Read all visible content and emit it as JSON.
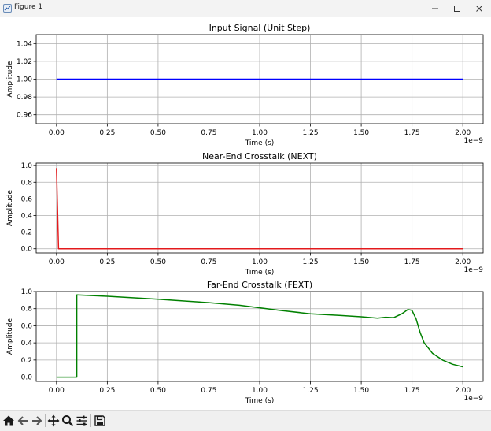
{
  "window": {
    "title": "Figure 1",
    "minimize_icon": "minimize-icon",
    "maximize_icon": "maximize-icon",
    "close_icon": "close-icon"
  },
  "toolbar": {
    "buttons": [
      "home-icon",
      "back-arrow-icon",
      "forward-arrow-icon",
      "pan-move-icon",
      "zoom-magnifier-icon",
      "configure-subplots-icon",
      "save-floppy-icon"
    ]
  },
  "chart_data": [
    {
      "type": "line",
      "title": "Input Signal (Unit Step)",
      "xlabel": "Time (s)",
      "ylabel": "Amplitude",
      "x_offset_text": "1e−9",
      "xlim": [
        -0.1,
        2.1
      ],
      "ylim": [
        0.95,
        1.05
      ],
      "x_ticks": [
        "0.00",
        "0.25",
        "0.50",
        "0.75",
        "1.00",
        "1.25",
        "1.50",
        "1.75",
        "2.00"
      ],
      "y_ticks": [
        "0.96",
        "0.98",
        "1.00",
        "1.02",
        "1.04"
      ],
      "y_tick_values": [
        0.96,
        0.98,
        1.0,
        1.02,
        1.04
      ],
      "grid": true,
      "series": [
        {
          "color": "#0000ff",
          "x": [
            0.0,
            2.0
          ],
          "y": [
            1.0,
            1.0
          ]
        }
      ]
    },
    {
      "type": "line",
      "title": "Near-End Crosstalk (NEXT)",
      "xlabel": "Time (s)",
      "ylabel": "Amplitude",
      "x_offset_text": "1e−9",
      "xlim": [
        -0.1,
        2.1
      ],
      "ylim": [
        -0.05,
        1.03
      ],
      "x_ticks": [
        "0.00",
        "0.25",
        "0.50",
        "0.75",
        "1.00",
        "1.25",
        "1.50",
        "1.75",
        "2.00"
      ],
      "y_ticks": [
        "0.0",
        "0.2",
        "0.4",
        "0.6",
        "0.8",
        "1.0"
      ],
      "y_tick_values": [
        0.0,
        0.2,
        0.4,
        0.6,
        0.8,
        1.0
      ],
      "grid": true,
      "series": [
        {
          "color": "#e31a1c",
          "x": [
            0.0,
            0.0,
            0.01,
            2.0
          ],
          "y": [
            0.97,
            0.97,
            0.0,
            0.0
          ]
        }
      ]
    },
    {
      "type": "line",
      "title": "Far-End Crosstalk (FEXT)",
      "xlabel": "Time (s)",
      "ylabel": "Amplitude",
      "x_offset_text": "1e−9",
      "xlim": [
        -0.1,
        2.1
      ],
      "ylim": [
        -0.05,
        1.0
      ],
      "x_ticks": [
        "0.00",
        "0.25",
        "0.50",
        "0.75",
        "1.00",
        "1.25",
        "1.50",
        "1.75",
        "2.00"
      ],
      "y_ticks": [
        "0.0",
        "0.2",
        "0.4",
        "0.6",
        "0.8",
        "1.0"
      ],
      "y_tick_values": [
        0.0,
        0.2,
        0.4,
        0.6,
        0.8,
        1.0
      ],
      "grid": true,
      "series": [
        {
          "color": "#008000",
          "x": [
            0.0,
            0.1,
            0.1,
            0.25,
            0.5,
            0.75,
            0.9,
            1.0,
            1.1,
            1.25,
            1.4,
            1.5,
            1.58,
            1.62,
            1.66,
            1.7,
            1.73,
            1.75,
            1.77,
            1.79,
            1.81,
            1.85,
            1.9,
            1.95,
            2.0
          ],
          "y": [
            0.0,
            0.0,
            0.96,
            0.945,
            0.91,
            0.87,
            0.84,
            0.81,
            0.78,
            0.74,
            0.72,
            0.705,
            0.69,
            0.7,
            0.695,
            0.74,
            0.79,
            0.78,
            0.68,
            0.52,
            0.4,
            0.28,
            0.2,
            0.15,
            0.12
          ]
        }
      ]
    }
  ]
}
